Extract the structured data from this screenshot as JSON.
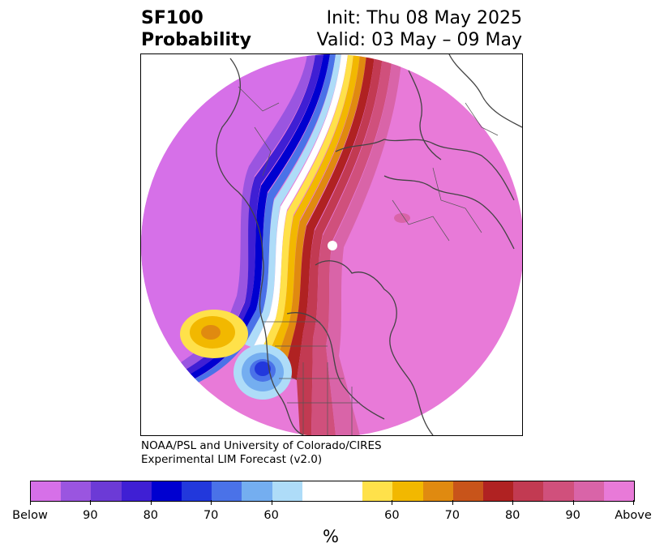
{
  "header": {
    "title_line1": "SF100",
    "title_line2": "Probability",
    "init_label": "Init: Thu 08 May 2025",
    "valid_label": "Valid: 03 May – 09 May"
  },
  "credit": {
    "line1": "NOAA/PSL and University of Colorado/CIRES",
    "line2": "Experimental LIM Forecast (v2.0)"
  },
  "colorbar": {
    "unit": "%",
    "tick_labels": [
      "Below",
      "90",
      "80",
      "70",
      "60",
      "60",
      "70",
      "80",
      "90",
      "Above"
    ],
    "colors": [
      "#d670e8",
      "#9a55e0",
      "#6c3ad6",
      "#3f1fd4",
      "#0000d0",
      "#2238dc",
      "#4a72e8",
      "#74aef0",
      "#aedcf8",
      "#ffffff",
      "#ffffff",
      "#ffe14a",
      "#f2b800",
      "#e08a10",
      "#c8541a",
      "#b02222",
      "#c23a52",
      "#d0507c",
      "#d964a8",
      "#e87ad8"
    ]
  },
  "map": {
    "background_color": "#e87ad8"
  }
}
